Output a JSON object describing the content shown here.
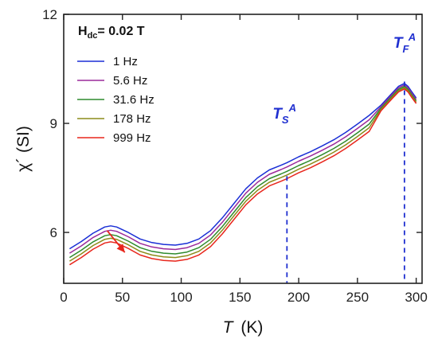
{
  "chart_data": {
    "type": "line",
    "xlabel_italic": "T",
    "xlabel_unit": "(K)",
    "ylabel": "χ´ (SI)",
    "xlim": [
      0,
      305
    ],
    "ylim": [
      4.6,
      12
    ],
    "xticks": [
      0,
      50,
      100,
      150,
      200,
      250,
      300
    ],
    "yticks": [
      6,
      9,
      12
    ],
    "grid": false,
    "legend_position": "upper-left",
    "field_label": {
      "main": "H",
      "sub": "dc",
      "rest": "= 0.02 T"
    },
    "series": [
      {
        "name": "1 Hz",
        "color": "#1a2fd6",
        "offset": 0.0
      },
      {
        "name": "5.6 Hz",
        "color": "#9b2a9b",
        "offset": -0.12
      },
      {
        "name": "31.6 Hz",
        "color": "#2e8b2e",
        "offset": -0.24
      },
      {
        "name": "178 Hz",
        "color": "#8c8c1a",
        "offset": -0.34
      },
      {
        "name": "999 Hz",
        "color": "#e8261c",
        "offset": -0.44
      }
    ],
    "base_curve": {
      "x": [
        5,
        15,
        25,
        35,
        40,
        45,
        55,
        65,
        75,
        85,
        95,
        105,
        115,
        125,
        135,
        145,
        155,
        165,
        175,
        185,
        190,
        200,
        210,
        220,
        230,
        240,
        250,
        260,
        270,
        280,
        285,
        290,
        293,
        296,
        300
      ],
      "y": [
        5.55,
        5.75,
        5.98,
        6.15,
        6.18,
        6.15,
        6.0,
        5.82,
        5.72,
        5.67,
        5.65,
        5.7,
        5.82,
        6.05,
        6.4,
        6.8,
        7.2,
        7.5,
        7.72,
        7.85,
        7.92,
        8.08,
        8.22,
        8.38,
        8.55,
        8.75,
        8.98,
        9.22,
        9.5,
        9.85,
        10.02,
        10.1,
        10.02,
        9.88,
        9.7
      ]
    },
    "annotations": [
      {
        "label": "T",
        "sub": "S",
        "sup": "A",
        "x": 190
      },
      {
        "label": "T",
        "sub": "F",
        "sup": "A",
        "x": 290
      }
    ],
    "arrow_note": "red arrow indicating increasing frequency near the low-temperature peak",
    "arrow": {
      "x1": 37,
      "y1": 6.05,
      "x2": 52,
      "y2": 5.45,
      "color": "#e8261c"
    }
  }
}
